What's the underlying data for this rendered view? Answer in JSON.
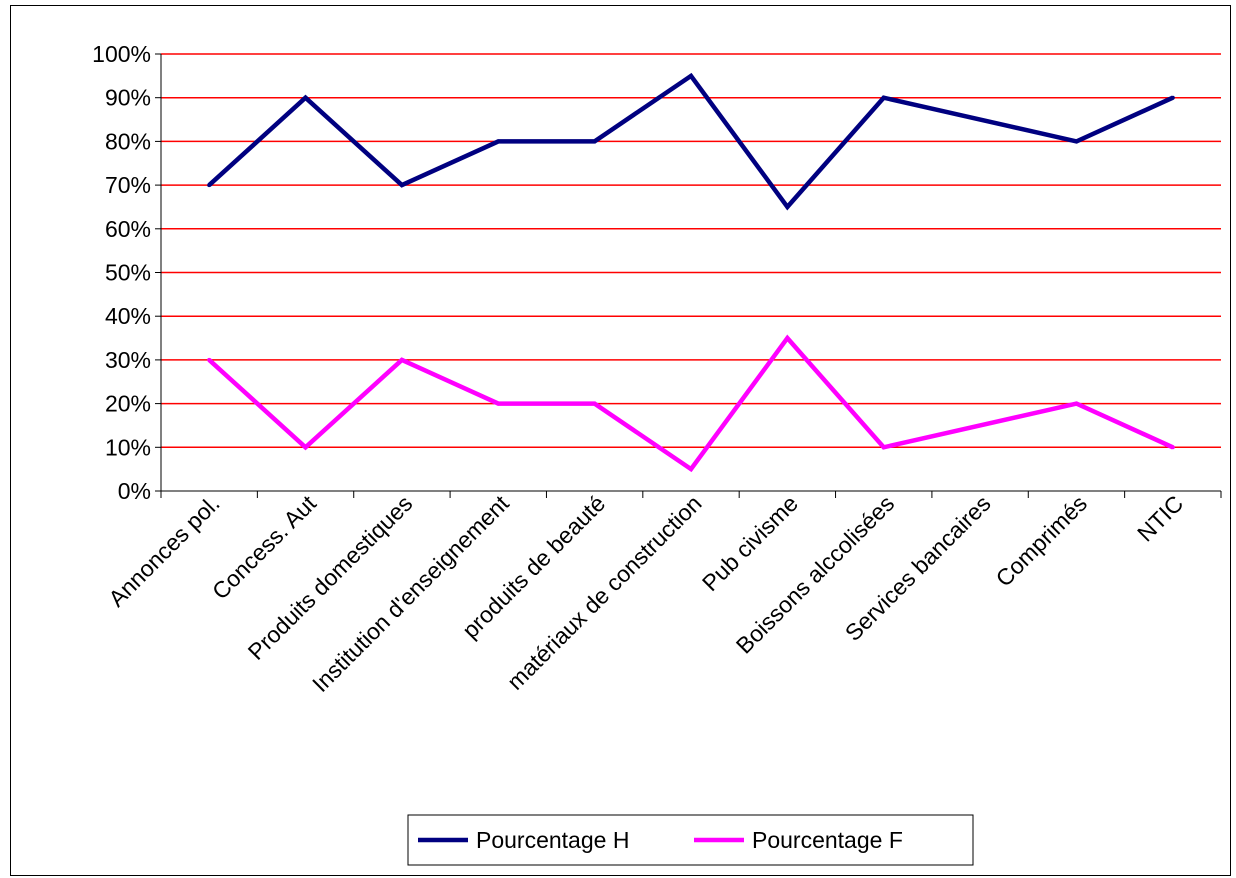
{
  "chart_data": {
    "type": "line",
    "title": "",
    "xlabel": "",
    "ylabel": "",
    "categories": [
      "Annonces pol.",
      "Concess. Aut",
      "Produits domestiques",
      "Institution d'enseignement",
      "produits de beauté",
      "matériaux de construction",
      "Pub civisme",
      "Boissons alccolisées",
      "Services bancaires",
      "Comprimés",
      "NTIC"
    ],
    "series": [
      {
        "name": "Pourcentage H",
        "color": "#000080",
        "values": [
          70,
          90,
          70,
          80,
          80,
          95,
          65,
          90,
          null,
          80,
          90
        ]
      },
      {
        "name": "Pourcentage F",
        "color": "#ff00ff",
        "values": [
          30,
          10,
          30,
          20,
          20,
          5,
          35,
          10,
          null,
          20,
          10
        ]
      }
    ],
    "ylim": [
      0,
      100
    ],
    "yticks": [
      0,
      10,
      20,
      30,
      40,
      50,
      60,
      70,
      80,
      90,
      100
    ],
    "ytick_labels": [
      "0%",
      "10%",
      "20%",
      "30%",
      "40%",
      "50%",
      "60%",
      "70%",
      "80%",
      "90%",
      "100%"
    ],
    "grid": {
      "horizontal": true,
      "color": "#ff0000"
    },
    "legend_position": "bottom"
  }
}
